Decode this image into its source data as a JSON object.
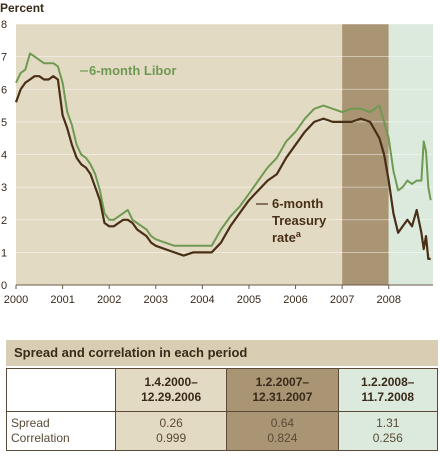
{
  "chart_data": {
    "type": "line",
    "ylabel": "Percent",
    "ylim": [
      0,
      8
    ],
    "yticks": [
      "0",
      "1",
      "2",
      "3",
      "4",
      "5",
      "6",
      "7",
      "8"
    ],
    "xlim": [
      2000,
      2008.95
    ],
    "xticks": [
      {
        "pos": 2000,
        "label": "2000"
      },
      {
        "pos": 2001,
        "label": "2001"
      },
      {
        "pos": 2002,
        "label": "2002"
      },
      {
        "pos": 2003,
        "label": "2003"
      },
      {
        "pos": 2004,
        "label": "2004"
      },
      {
        "pos": 2005,
        "label": "2005"
      },
      {
        "pos": 2006,
        "label": "2006"
      },
      {
        "pos": 2007,
        "label": "2007"
      },
      {
        "pos": 2008,
        "label": "2008"
      }
    ],
    "shaded_periods": [
      {
        "start": 2000.0,
        "end": 2007.0,
        "color": "#e3dac3"
      },
      {
        "start": 2007.0,
        "end": 2008.0,
        "color": "#a99474"
      },
      {
        "start": 2008.0,
        "end": 2008.95,
        "color": "#dbeadc"
      }
    ],
    "series": [
      {
        "name": "6-month Libor",
        "color": "#6f9a52",
        "x": [
          2000.0,
          2000.1,
          2000.2,
          2000.3,
          2000.4,
          2000.5,
          2000.6,
          2000.7,
          2000.8,
          2000.9,
          2001.0,
          2001.1,
          2001.2,
          2001.3,
          2001.4,
          2001.5,
          2001.6,
          2001.7,
          2001.8,
          2001.9,
          2002.0,
          2002.1,
          2002.2,
          2002.3,
          2002.4,
          2002.5,
          2002.6,
          2002.7,
          2002.8,
          2002.9,
          2003.0,
          2003.2,
          2003.4,
          2003.6,
          2003.8,
          2004.0,
          2004.2,
          2004.4,
          2004.6,
          2004.8,
          2005.0,
          2005.2,
          2005.4,
          2005.6,
          2005.8,
          2006.0,
          2006.2,
          2006.4,
          2006.6,
          2006.8,
          2007.0,
          2007.2,
          2007.4,
          2007.6,
          2007.8,
          2007.9,
          2008.0,
          2008.1,
          2008.2,
          2008.3,
          2008.4,
          2008.5,
          2008.6,
          2008.7,
          2008.75,
          2008.8,
          2008.85,
          2008.9
        ],
        "values": [
          6.2,
          6.5,
          6.6,
          7.1,
          7.0,
          6.9,
          6.8,
          6.8,
          6.8,
          6.7,
          6.2,
          5.3,
          4.9,
          4.3,
          4.0,
          3.9,
          3.7,
          3.4,
          2.9,
          2.2,
          2.0,
          2.0,
          2.1,
          2.2,
          2.3,
          2.0,
          1.9,
          1.8,
          1.7,
          1.5,
          1.4,
          1.3,
          1.2,
          1.2,
          1.2,
          1.2,
          1.2,
          1.7,
          2.1,
          2.4,
          2.8,
          3.2,
          3.6,
          3.9,
          4.4,
          4.7,
          5.1,
          5.4,
          5.5,
          5.4,
          5.3,
          5.4,
          5.4,
          5.3,
          5.5,
          5.0,
          4.5,
          3.5,
          2.9,
          3.0,
          3.2,
          3.1,
          3.2,
          3.2,
          4.4,
          4.1,
          3.0,
          2.6
        ]
      },
      {
        "name": "6-month Treasury rate",
        "color": "#4a2f17",
        "x": [
          2000.0,
          2000.1,
          2000.2,
          2000.3,
          2000.4,
          2000.5,
          2000.6,
          2000.7,
          2000.8,
          2000.9,
          2001.0,
          2001.1,
          2001.2,
          2001.3,
          2001.4,
          2001.5,
          2001.6,
          2001.7,
          2001.8,
          2001.9,
          2002.0,
          2002.1,
          2002.2,
          2002.3,
          2002.4,
          2002.5,
          2002.6,
          2002.7,
          2002.8,
          2002.9,
          2003.0,
          2003.2,
          2003.4,
          2003.6,
          2003.8,
          2004.0,
          2004.2,
          2004.4,
          2004.6,
          2004.8,
          2005.0,
          2005.2,
          2005.4,
          2005.6,
          2005.8,
          2006.0,
          2006.2,
          2006.4,
          2006.6,
          2006.8,
          2007.0,
          2007.2,
          2007.4,
          2007.6,
          2007.8,
          2007.9,
          2008.0,
          2008.1,
          2008.2,
          2008.3,
          2008.4,
          2008.5,
          2008.6,
          2008.7,
          2008.75,
          2008.8,
          2008.85,
          2008.9
        ],
        "values": [
          5.6,
          6.0,
          6.2,
          6.3,
          6.4,
          6.4,
          6.3,
          6.3,
          6.4,
          6.3,
          5.2,
          4.8,
          4.3,
          3.9,
          3.7,
          3.6,
          3.4,
          3.0,
          2.6,
          1.9,
          1.8,
          1.8,
          1.9,
          2.0,
          2.0,
          1.9,
          1.7,
          1.6,
          1.5,
          1.3,
          1.2,
          1.1,
          1.0,
          0.9,
          1.0,
          1.0,
          1.0,
          1.3,
          1.8,
          2.2,
          2.6,
          2.9,
          3.2,
          3.4,
          3.9,
          4.3,
          4.7,
          5.0,
          5.1,
          5.0,
          5.0,
          5.0,
          5.1,
          5.0,
          4.5,
          4.0,
          3.2,
          2.2,
          1.6,
          1.8,
          2.0,
          1.8,
          2.3,
          1.6,
          1.1,
          1.5,
          0.8,
          0.8
        ]
      }
    ],
    "annotations": {
      "libor": "6-month Libor",
      "treasury_line1": "6-month",
      "treasury_line2": "Treasury",
      "treasury_line3": "rate",
      "treasury_sup": "a"
    }
  },
  "table": {
    "title": "Spread and correlation in each period",
    "row_labels": [
      "Spread",
      "Correlation"
    ],
    "periods": [
      {
        "line1": "1.4.2000–",
        "line2": "12.29.2006",
        "spread": "0.26",
        "correlation": "0.999"
      },
      {
        "line1": "1.2.2007–",
        "line2": "12.31.2007",
        "spread": "0.64",
        "correlation": "0.824"
      },
      {
        "line1": "1.2.2008–",
        "line2": "11.7.2008",
        "spread": "1.31",
        "correlation": "0.256"
      }
    ]
  }
}
